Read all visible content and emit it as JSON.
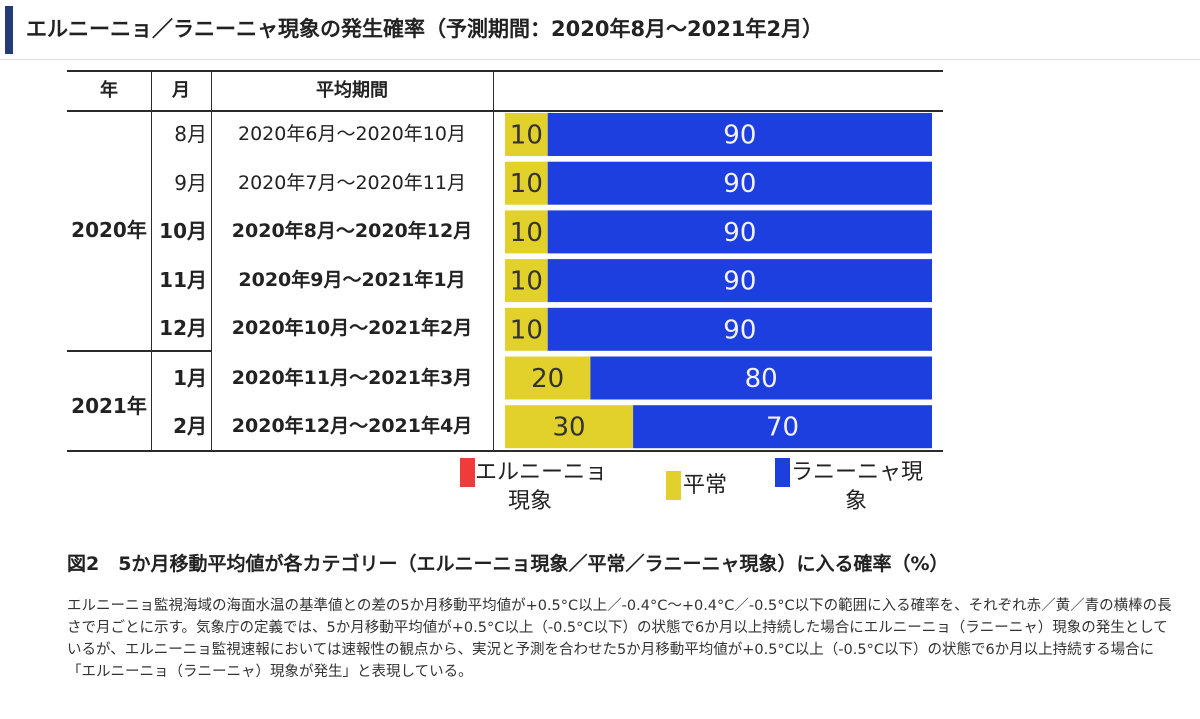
{
  "header": {
    "title": "エルニーニョ／ラニーニャ現象の発生確率（予測期間：2020年8月〜2021年2月）"
  },
  "table": {
    "headers": {
      "year": "年",
      "month": "月",
      "period": "平均期間"
    },
    "years": [
      {
        "label": "2020年"
      },
      {
        "label": "2021年"
      }
    ],
    "rows": [
      {
        "month": "8月",
        "period": "2020年6月〜2020年10月",
        "bold": false
      },
      {
        "month": "9月",
        "period": "2020年7月〜2020年11月",
        "bold": false
      },
      {
        "month": "10月",
        "period": "2020年8月〜2020年12月",
        "bold": true
      },
      {
        "month": "11月",
        "period": "2020年9月〜2021年1月",
        "bold": true
      },
      {
        "month": "12月",
        "period": "2020年10月〜2021年2月",
        "bold": true
      },
      {
        "month": "1月",
        "period": "2020年11月〜2021年3月",
        "bold": true
      },
      {
        "month": "2月",
        "period": "2020年12月〜2021年4月",
        "bold": true
      }
    ]
  },
  "chart_data": {
    "type": "bar",
    "orientation": "horizontal",
    "stacked": true,
    "categories": [
      "8月",
      "9月",
      "10月",
      "11月",
      "12月",
      "1月",
      "2月"
    ],
    "series": [
      {
        "name": "エルニーニョ現象",
        "color": "#ef3b3b",
        "values": [
          0,
          0,
          0,
          0,
          0,
          0,
          0
        ]
      },
      {
        "name": "平常",
        "color": "#e2d12a",
        "values": [
          10,
          10,
          10,
          10,
          10,
          20,
          30
        ]
      },
      {
        "name": "ラニーニャ現象",
        "color": "#1e3fe0",
        "values": [
          90,
          90,
          90,
          90,
          90,
          80,
          70
        ]
      }
    ],
    "xlim": [
      0,
      100
    ],
    "unit": "%",
    "legend": [
      {
        "line1": "エルニーニョ",
        "line2": "現象",
        "color": "#ef3b3b"
      },
      {
        "line1": "平常",
        "line2": "",
        "color": "#e2d12a"
      },
      {
        "line1": "ラニーニャ現",
        "line2": "象",
        "color": "#1e3fe0"
      }
    ]
  },
  "caption": {
    "title": "図2　5か月移動平均値が各カテゴリー（エルニーニョ現象／平常／ラニーニャ現象）に入る確率（%）",
    "body": "エルニーニョ監視海域の海面水温の基準値との差の5か月移動平均値が+0.5°C以上／-0.4°C〜+0.4°C／-0.5°C以下の範囲に入る確率を、それぞれ赤／黄／青の横棒の長さで月ごとに示す。気象庁の定義では、5か月移動平均値が+0.5°C以上（-0.5°C以下）の状態で6か月以上持続した場合にエルニーニョ（ラニーニャ）現象の発生としているが、エルニーニョ監視速報においては速報性の観点から、実況と予測を合わせた5か月移動平均値が+0.5°C以上（-0.5°C以下）の状態で6か月以上持続する場合に「エルニーニョ（ラニーニャ）現象が発生」と表現している。"
  }
}
